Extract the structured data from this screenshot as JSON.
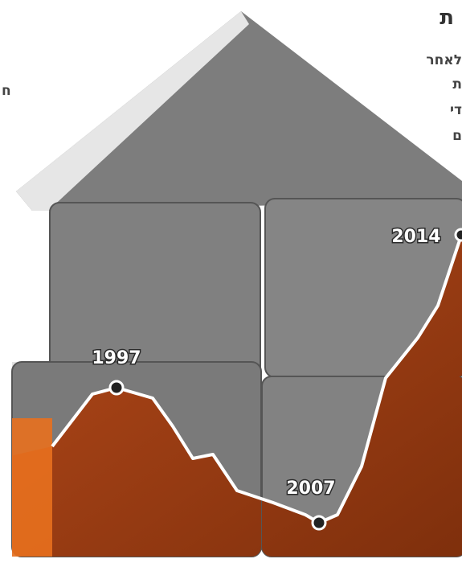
{
  "heading": "ת",
  "side_text": [
    "לאחר",
    "ת",
    "די",
    "ם"
  ],
  "left_fragment": "ח",
  "labels": [
    {
      "text": "1997"
    },
    {
      "text": "2007"
    },
    {
      "text": "2014"
    }
  ]
}
